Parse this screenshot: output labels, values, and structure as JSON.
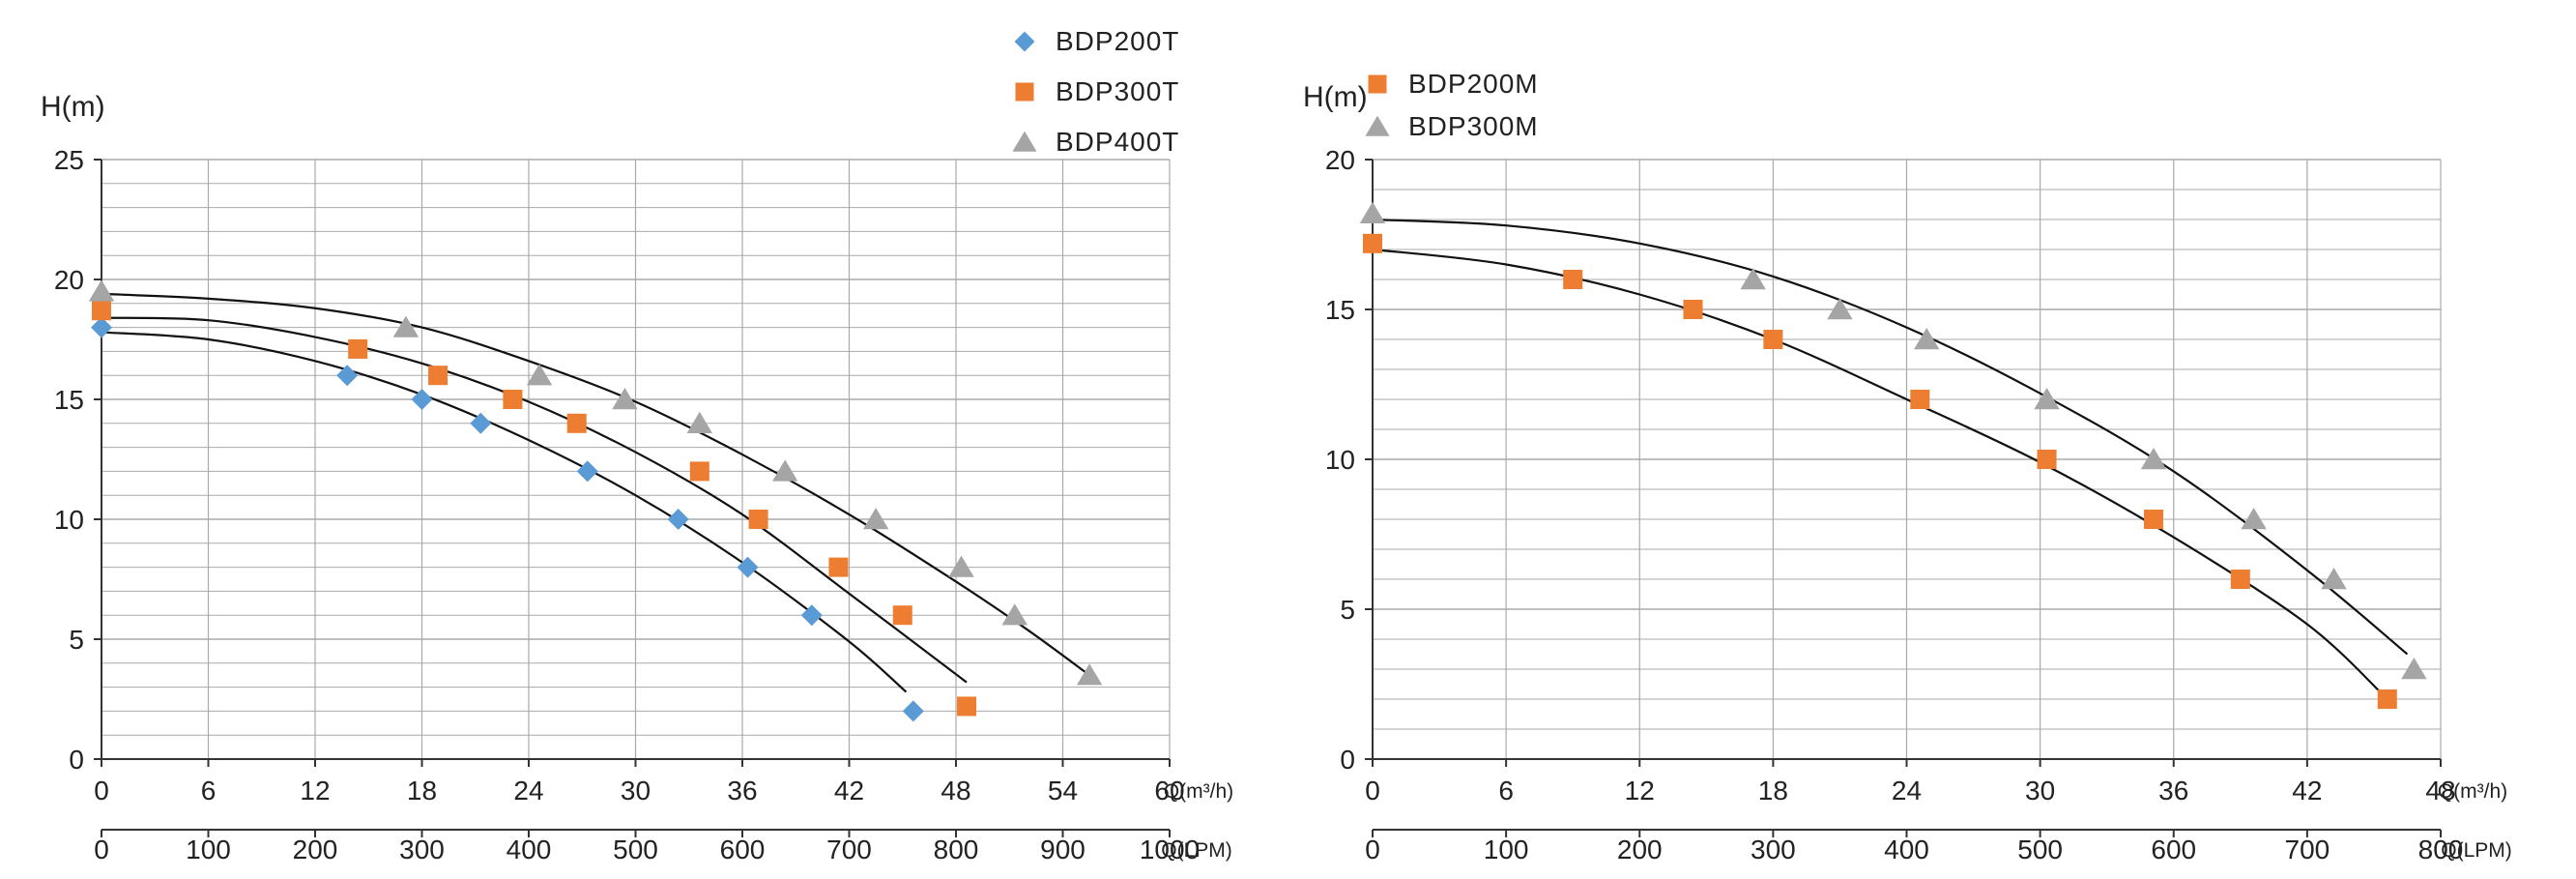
{
  "colors": {
    "BDP200T": "#5b9bd5",
    "BDP300T": "#ed7d31",
    "BDP400T": "#a5a5a5",
    "BDP200M": "#ed7d31",
    "BDP300M": "#a5a5a5",
    "grid": "#aaaaaa",
    "curve": "#111111"
  },
  "chart_data": [
    {
      "type": "scatter",
      "ylabel": "H(m)",
      "xlabel_top": "Q(m³/h)",
      "xlabel_bottom": "Q(LPM)",
      "xlim": [
        0,
        60
      ],
      "ylim": [
        0,
        25
      ],
      "x_ticks": [
        "0",
        "6",
        "12",
        "18",
        "24",
        "30",
        "36",
        "42",
        "48",
        "54",
        "60"
      ],
      "x2_ticks": [
        "0",
        "100",
        "200",
        "300",
        "400",
        "500",
        "600",
        "700",
        "800",
        "900",
        "1000"
      ],
      "y_ticks": [
        "0",
        "5",
        "10",
        "15",
        "20",
        "25"
      ],
      "grid": true,
      "legend_position": "top-right",
      "series": [
        {
          "name": "BDP200T",
          "marker": "diamond",
          "points": [
            [
              0,
              18
            ],
            [
              13.8,
              16
            ],
            [
              18,
              15
            ],
            [
              21.3,
              14
            ],
            [
              27.3,
              12
            ],
            [
              32.4,
              10
            ],
            [
              36.3,
              8
            ],
            [
              39.9,
              6
            ],
            [
              45.6,
              2
            ]
          ],
          "curve": [
            [
              0,
              17.8
            ],
            [
              6,
              17.5
            ],
            [
              12,
              16.6
            ],
            [
              18,
              15.2
            ],
            [
              24,
              13.3
            ],
            [
              30,
              11.0
            ],
            [
              36,
              8.2
            ],
            [
              42,
              4.9
            ],
            [
              45.2,
              2.8
            ]
          ]
        },
        {
          "name": "BDP300T",
          "marker": "square",
          "points": [
            [
              0,
              18.7
            ],
            [
              14.4,
              17.1
            ],
            [
              18.9,
              16
            ],
            [
              23.1,
              15
            ],
            [
              26.7,
              14
            ],
            [
              33.6,
              12
            ],
            [
              36.9,
              10
            ],
            [
              41.4,
              8
            ],
            [
              45,
              6
            ],
            [
              48.6,
              2.2
            ]
          ],
          "curve": [
            [
              0,
              18.4
            ],
            [
              6,
              18.3
            ],
            [
              12,
              17.6
            ],
            [
              18,
              16.5
            ],
            [
              24,
              14.9
            ],
            [
              30,
              12.8
            ],
            [
              36,
              10.2
            ],
            [
              42,
              6.9
            ],
            [
              48.6,
              3.2
            ]
          ]
        },
        {
          "name": "BDP400T",
          "marker": "triangle",
          "points": [
            [
              0,
              19.5
            ],
            [
              17.1,
              18
            ],
            [
              24.6,
              16
            ],
            [
              29.4,
              15
            ],
            [
              33.6,
              14
            ],
            [
              38.4,
              12
            ],
            [
              43.5,
              10
            ],
            [
              48.3,
              8
            ],
            [
              51.3,
              6
            ],
            [
              55.5,
              3.5
            ]
          ],
          "curve": [
            [
              0,
              19.4
            ],
            [
              6,
              19.2
            ],
            [
              12,
              18.8
            ],
            [
              18,
              18.0
            ],
            [
              24,
              16.6
            ],
            [
              30,
              14.9
            ],
            [
              36,
              12.7
            ],
            [
              42,
              10.2
            ],
            [
              48,
              7.4
            ],
            [
              52,
              5.4
            ],
            [
              55.5,
              3.5
            ]
          ]
        }
      ]
    },
    {
      "type": "scatter",
      "ylabel": "H(m)",
      "xlabel_top": "Q(m³/h)",
      "xlabel_bottom": "Q(LPM)",
      "xlim": [
        0,
        48
      ],
      "ylim": [
        0,
        20
      ],
      "x_ticks": [
        "0",
        "6",
        "12",
        "18",
        "24",
        "30",
        "36",
        "42",
        "48"
      ],
      "x2_ticks": [
        "0",
        "100",
        "200",
        "300",
        "400",
        "500",
        "600",
        "700",
        "800"
      ],
      "y_ticks": [
        "0",
        "5",
        "10",
        "15",
        "20"
      ],
      "grid": true,
      "legend_position": "top-right",
      "series": [
        {
          "name": "BDP200M",
          "marker": "square",
          "points": [
            [
              0,
              17.2
            ],
            [
              9,
              16
            ],
            [
              14.4,
              15
            ],
            [
              18,
              14
            ],
            [
              24.6,
              12
            ],
            [
              30.3,
              10
            ],
            [
              35.1,
              8
            ],
            [
              39,
              6
            ],
            [
              45.6,
              2
            ]
          ],
          "curve": [
            [
              0,
              17.0
            ],
            [
              6,
              16.5
            ],
            [
              12,
              15.5
            ],
            [
              18,
              14.0
            ],
            [
              24,
              12.0
            ],
            [
              30,
              9.9
            ],
            [
              36,
              7.4
            ],
            [
              42,
              4.5
            ],
            [
              45.6,
              2.0
            ]
          ]
        },
        {
          "name": "BDP300M",
          "marker": "triangle",
          "points": [
            [
              0,
              18.2
            ],
            [
              17.1,
              16
            ],
            [
              21,
              15
            ],
            [
              24.9,
              14
            ],
            [
              30.3,
              12
            ],
            [
              35.1,
              10
            ],
            [
              39.6,
              8
            ],
            [
              43.2,
              6
            ],
            [
              46.8,
              3
            ]
          ],
          "curve": [
            [
              0,
              18.0
            ],
            [
              6,
              17.8
            ],
            [
              12,
              17.2
            ],
            [
              18,
              16.1
            ],
            [
              24,
              14.4
            ],
            [
              30,
              12.2
            ],
            [
              36,
              9.6
            ],
            [
              42,
              6.3
            ],
            [
              46.5,
              3.5
            ]
          ]
        }
      ]
    }
  ]
}
